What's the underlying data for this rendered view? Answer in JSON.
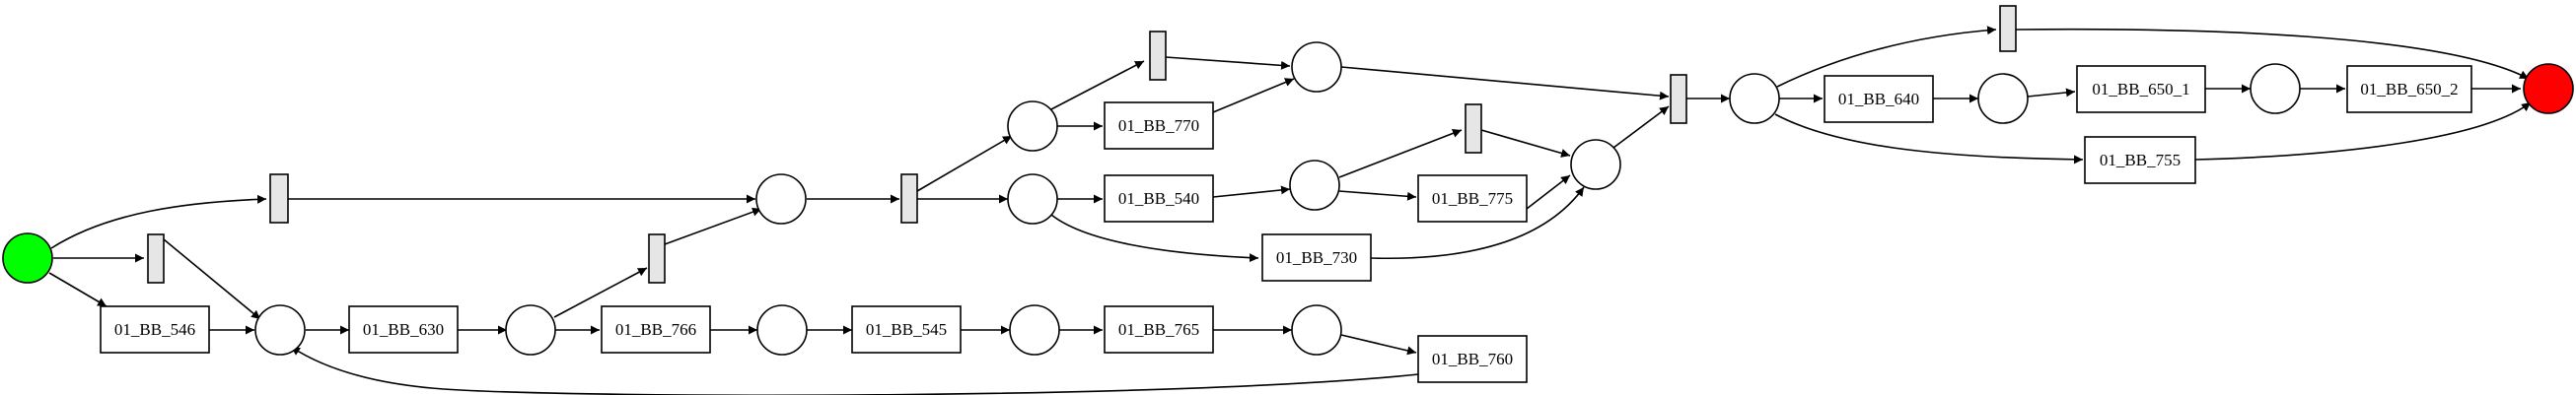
{
  "colors": {
    "start": "#00ff00",
    "end": "#ff0000",
    "silent": "#e6e6e6",
    "place": "#ffffff"
  },
  "transitions": [
    {
      "id": "t546",
      "label": "01_BB_546"
    },
    {
      "id": "t630",
      "label": "01_BB_630"
    },
    {
      "id": "t766",
      "label": "01_BB_766"
    },
    {
      "id": "t545",
      "label": "01_BB_545"
    },
    {
      "id": "t765",
      "label": "01_BB_765"
    },
    {
      "id": "t760",
      "label": "01_BB_760"
    },
    {
      "id": "t540",
      "label": "01_BB_540"
    },
    {
      "id": "t730",
      "label": "01_BB_730"
    },
    {
      "id": "t775",
      "label": "01_BB_775"
    },
    {
      "id": "t770",
      "label": "01_BB_770"
    },
    {
      "id": "t640",
      "label": "01_BB_640"
    },
    {
      "id": "t755",
      "label": "01_BB_755"
    },
    {
      "id": "t650_1",
      "label": "01_BB_650_1"
    },
    {
      "id": "t650_2",
      "label": "01_BB_650_2"
    }
  ]
}
